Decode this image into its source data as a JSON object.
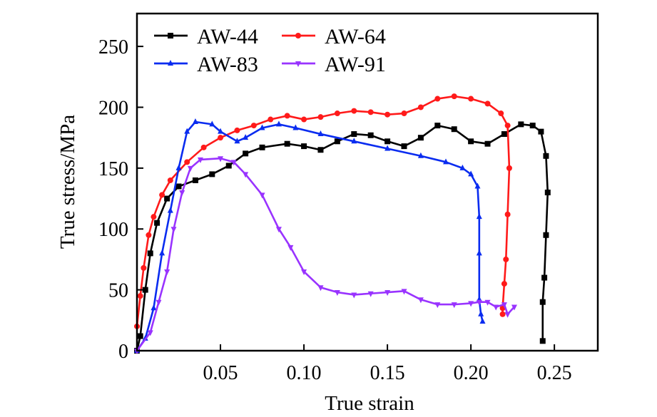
{
  "chart_data": {
    "type": "line",
    "title": "",
    "xlabel": "True strain",
    "ylabel": "True stress/MPa",
    "xlim": [
      0,
      0.276
    ],
    "ylim": [
      0,
      277
    ],
    "xticks": [
      0.05,
      0.1,
      0.15,
      0.2,
      0.25
    ],
    "xtick_labels": [
      "0.05",
      "0.10",
      "0.15",
      "0.20",
      "0.25"
    ],
    "yticks": [
      0,
      50,
      100,
      150,
      200,
      250
    ],
    "ytick_labels": [
      "0",
      "50",
      "100",
      "150",
      "200",
      "250"
    ],
    "grid": false,
    "legend_position": "top-left",
    "series": [
      {
        "name": "AW-44",
        "color": "#000000",
        "marker": "square",
        "x": [
          0,
          0.002,
          0.005,
          0.008,
          0.012,
          0.018,
          0.025,
          0.035,
          0.045,
          0.055,
          0.065,
          0.075,
          0.09,
          0.1,
          0.11,
          0.12,
          0.13,
          0.14,
          0.15,
          0.16,
          0.17,
          0.18,
          0.19,
          0.2,
          0.21,
          0.22,
          0.23,
          0.237,
          0.242,
          0.245,
          0.246,
          0.245,
          0.244,
          0.243,
          0.243
        ],
        "y": [
          0,
          12,
          50,
          80,
          105,
          125,
          135,
          140,
          145,
          152,
          162,
          167,
          170,
          168,
          165,
          172,
          178,
          177,
          172,
          168,
          175,
          185,
          182,
          172,
          170,
          178,
          186,
          185,
          180,
          160,
          130,
          95,
          60,
          40,
          8
        ]
      },
      {
        "name": "AW-64",
        "color": "#ff1a1a",
        "marker": "circle",
        "x": [
          0,
          0.002,
          0.004,
          0.007,
          0.01,
          0.015,
          0.02,
          0.03,
          0.04,
          0.05,
          0.06,
          0.07,
          0.08,
          0.09,
          0.1,
          0.11,
          0.12,
          0.13,
          0.14,
          0.15,
          0.16,
          0.17,
          0.18,
          0.19,
          0.2,
          0.21,
          0.218,
          0.222,
          0.223,
          0.222,
          0.221,
          0.22,
          0.219,
          0.219
        ],
        "y": [
          20,
          45,
          68,
          95,
          110,
          128,
          140,
          155,
          167,
          175,
          181,
          185,
          190,
          193,
          190,
          192,
          195,
          197,
          196,
          194,
          195,
          200,
          207,
          209,
          207,
          203,
          195,
          185,
          150,
          112,
          75,
          55,
          35,
          30
        ]
      },
      {
        "name": "AW-83",
        "color": "#0a2cf0",
        "marker": "triangle-up",
        "x": [
          0,
          0.005,
          0.01,
          0.015,
          0.02,
          0.025,
          0.03,
          0.035,
          0.045,
          0.05,
          0.06,
          0.065,
          0.075,
          0.085,
          0.095,
          0.11,
          0.13,
          0.15,
          0.17,
          0.185,
          0.195,
          0.2,
          0.204,
          0.205,
          0.205,
          0.205,
          0.206,
          0.207
        ],
        "y": [
          0,
          10,
          35,
          80,
          115,
          150,
          180,
          188,
          186,
          180,
          172,
          175,
          183,
          186,
          183,
          178,
          172,
          166,
          160,
          155,
          150,
          145,
          135,
          110,
          80,
          42,
          30,
          24
        ]
      },
      {
        "name": "AW-91",
        "color": "#9933ff",
        "marker": "triangle-down",
        "x": [
          0,
          0.008,
          0.013,
          0.018,
          0.022,
          0.027,
          0.032,
          0.038,
          0.05,
          0.058,
          0.065,
          0.075,
          0.085,
          0.092,
          0.1,
          0.11,
          0.12,
          0.13,
          0.14,
          0.15,
          0.16,
          0.17,
          0.18,
          0.19,
          0.2,
          0.205,
          0.21,
          0.215,
          0.22,
          0.222,
          0.226
        ],
        "y": [
          0,
          15,
          40,
          65,
          100,
          130,
          150,
          157,
          158,
          155,
          145,
          128,
          100,
          85,
          65,
          52,
          48,
          46,
          47,
          48,
          49,
          42,
          38,
          38,
          39,
          40,
          40,
          36,
          38,
          30,
          36
        ]
      }
    ]
  }
}
